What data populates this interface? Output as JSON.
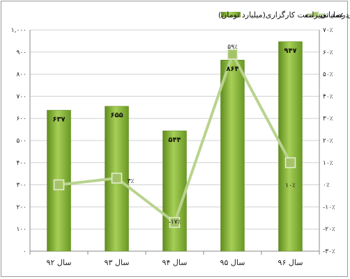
{
  "chart_data": {
    "type": "bar",
    "categories": [
      "سال ۹۲",
      "سال ۹۳",
      "سال ۹۴",
      "سال ۹۵",
      "سال ۹۶"
    ],
    "series": [
      {
        "name": "مجموع درآمدهای عملیاتی صنعت کارگزاری(میلیارد تومان)",
        "type": "bar",
        "axis": "left",
        "values": [
          637,
          655,
          544,
          864,
          947
        ],
        "labels": [
          "۶۳۷",
          "۶۵۵",
          "۵۴۴",
          "۸۶۴",
          "۹۴۷"
        ]
      },
      {
        "name": "درصد تغییرات",
        "type": "line",
        "axis": "right",
        "values": [
          0,
          3,
          -17,
          59,
          10
        ],
        "labels": [
          "",
          "۳٪",
          "-۱۷٪",
          "۵۹٪",
          "۱۰٪"
        ]
      }
    ],
    "ylim": [
      0,
      1000
    ],
    "y2lim": [
      -30,
      70
    ],
    "yticks": [
      "۰",
      "۱۰۰",
      "۲۰۰",
      "۳۰۰",
      "۴۰۰",
      "۵۰۰",
      "۶۰۰",
      "۷۰۰",
      "۸۰۰",
      "۹۰۰",
      "۱,۰۰۰"
    ],
    "y2ticks": [
      "-۳۰٪",
      "-۲۰٪",
      "-۱۰٪",
      "۰٪",
      "۱۰٪",
      "۲۰٪",
      "۳۰٪",
      "۴۰٪",
      "۵۰٪",
      "۶۰٪",
      "۷۰٪"
    ],
    "grid": true,
    "legend": "top",
    "colors": {
      "bar": "#8ab536",
      "bar_dark": "#5e8a1e",
      "line": "#b9d38e",
      "marker": "#a5c46a"
    }
  }
}
